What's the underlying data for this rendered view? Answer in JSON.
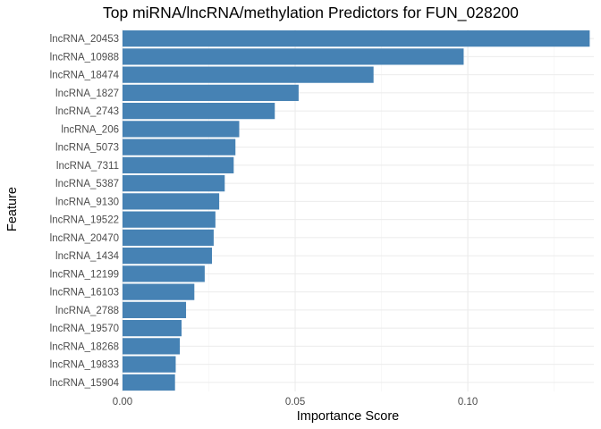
{
  "chart_data": {
    "type": "bar",
    "orientation": "horizontal",
    "title": "Top miRNA/lncRNA/methylation Predictors for FUN_028200",
    "xlabel": "Importance Score",
    "ylabel": "Feature",
    "xlim": [
      0,
      0.1365
    ],
    "xticks": [
      0.0,
      0.05,
      0.1
    ],
    "xtick_labels": [
      "0.00",
      "0.05",
      "0.10"
    ],
    "grid": true,
    "bar_color": "#4682b4",
    "categories": [
      "lncRNA_20453",
      "lncRNA_10988",
      "lncRNA_18474",
      "lncRNA_1827",
      "lncRNA_2743",
      "lncRNA_206",
      "lncRNA_5073",
      "lncRNA_7311",
      "lncRNA_5387",
      "lncRNA_9130",
      "lncRNA_19522",
      "lncRNA_20470",
      "lncRNA_1434",
      "lncRNA_12199",
      "lncRNA_16103",
      "lncRNA_2788",
      "lncRNA_19570",
      "lncRNA_18268",
      "lncRNA_19833",
      "lncRNA_15904"
    ],
    "values": [
      0.1353,
      0.0988,
      0.0727,
      0.051,
      0.0441,
      0.0338,
      0.0327,
      0.0322,
      0.0296,
      0.028,
      0.0269,
      0.0264,
      0.0259,
      0.0238,
      0.0208,
      0.0184,
      0.0171,
      0.0166,
      0.0154,
      0.0152
    ]
  }
}
